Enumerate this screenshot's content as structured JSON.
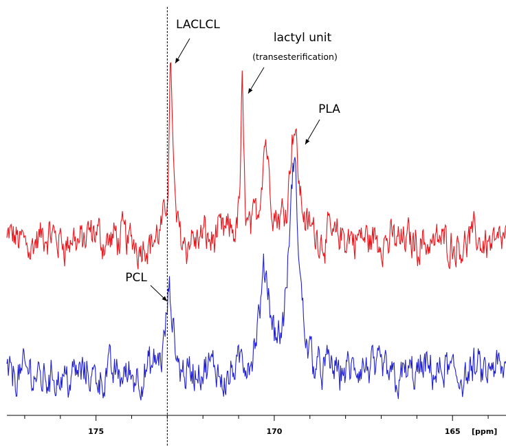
{
  "chart_data": {
    "type": "line",
    "title": "",
    "xlabel": "[ppm]",
    "ylabel": "",
    "x_reversed": true,
    "xlim": [
      177.5,
      163.5
    ],
    "x_ticks": [
      175,
      170,
      165
    ],
    "x_tick_labels": [
      "175",
      "170",
      "165"
    ],
    "minor_tick_step": 1,
    "reference_line_ppm": 173.0,
    "colors": {
      "red": "#e8141a",
      "blue": "#1f1fd0"
    },
    "series": [
      {
        "name": "",
        "color": "red",
        "baseline": 0.62,
        "noise": 0.9,
        "peaks": [
          {
            "ppm": 172.9,
            "height": 14.2,
            "width": 0.06
          },
          {
            "ppm": 170.9,
            "height": 11.5,
            "width": 0.045
          },
          {
            "ppm": 170.25,
            "height": 8.0,
            "width": 0.13
          },
          {
            "ppm": 169.45,
            "height": 9.2,
            "width": 0.15
          }
        ]
      },
      {
        "name": "",
        "color": "blue",
        "baseline": 0.0,
        "noise": 0.9,
        "peaks": [
          {
            "ppm": 172.95,
            "height": 6.2,
            "width": 0.11
          },
          {
            "ppm": 170.25,
            "height": 7.0,
            "width": 0.18
          },
          {
            "ppm": 169.45,
            "height": 16.0,
            "width": 0.16
          }
        ]
      }
    ],
    "annotations": [
      {
        "text": "LACLCL",
        "ppm": 172.9,
        "series": "red"
      },
      {
        "text": "lactyl unit",
        "subtext": "(transesterification)",
        "ppm": 170.85,
        "series": "red"
      },
      {
        "text": "PLA",
        "ppm": 169.4,
        "series": "red"
      },
      {
        "text": "PCL",
        "ppm": 172.95,
        "series": "blue"
      }
    ]
  }
}
